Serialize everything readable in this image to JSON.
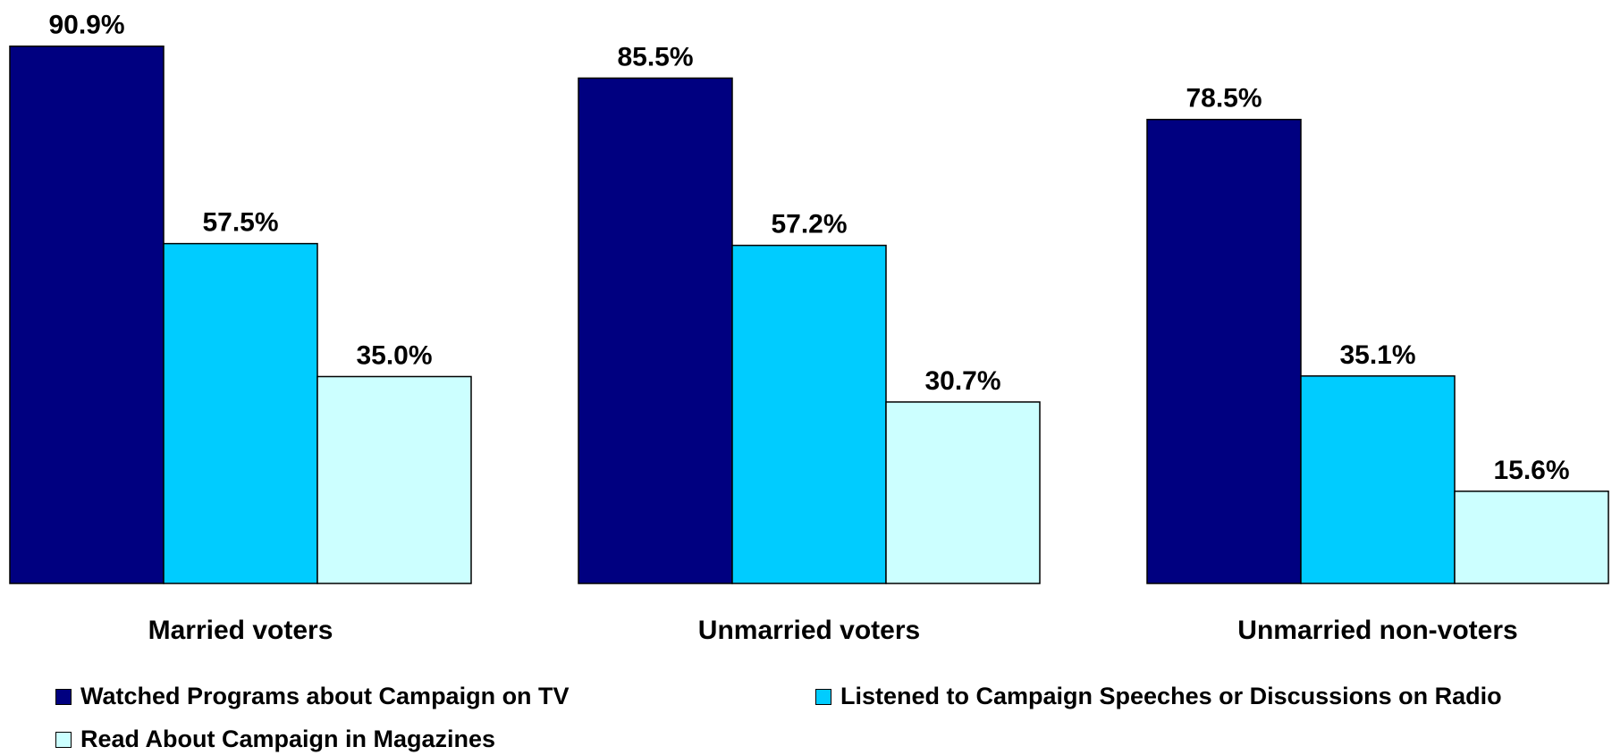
{
  "chart_data": {
    "type": "bar",
    "title": "",
    "xlabel": "",
    "ylabel": "",
    "ylim": [
      0,
      100
    ],
    "grid": false,
    "legend_position": "bottom",
    "value_suffix": "%",
    "categories": [
      "Married voters",
      "Unmarried voters",
      "Unmarried non-voters"
    ],
    "series": [
      {
        "name": "Watched Programs about Campaign on TV",
        "values": [
          90.9,
          85.5,
          78.5
        ],
        "labels": [
          "90.9%",
          "85.5%",
          "78.5%"
        ],
        "color": "#000080"
      },
      {
        "name": "Listened to Campaign Speeches or Discussions on Radio",
        "values": [
          57.5,
          57.2,
          35.1
        ],
        "labels": [
          "57.5%",
          "57.2%",
          "35.1%"
        ],
        "color": "#00CCFF"
      },
      {
        "name": "Read About Campaign in Magazines",
        "values": [
          35.0,
          30.7,
          15.6
        ],
        "labels": [
          "35.0%",
          "30.7%",
          "15.6%"
        ],
        "color": "#CCFFFF"
      }
    ]
  }
}
